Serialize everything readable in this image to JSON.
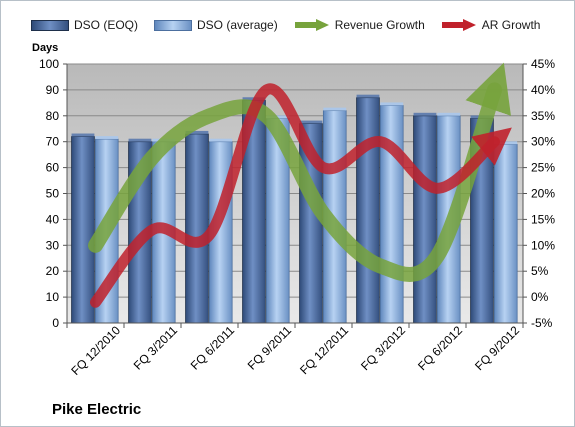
{
  "company_name": "Pike Electric",
  "chart_data": {
    "type": "bar",
    "title": "",
    "categories": [
      "FQ 12/2010",
      "FQ 3/2011",
      "FQ 6/2011",
      "FQ 9/2011",
      "FQ 12/2011",
      "FQ 3/2012",
      "FQ 6/2012",
      "FQ 9/2012"
    ],
    "ylabel": "Days",
    "ylim": [
      0,
      100
    ],
    "y_ticks": [
      0,
      10,
      20,
      30,
      40,
      50,
      60,
      70,
      80,
      90,
      100
    ],
    "y2lim": [
      -5,
      45
    ],
    "y2_ticks": [
      "-5%",
      "0%",
      "5%",
      "10%",
      "15%",
      "20%",
      "25%",
      "30%",
      "35%",
      "40%",
      "45%"
    ],
    "y2_values": [
      -5,
      0,
      5,
      10,
      15,
      20,
      25,
      30,
      35,
      40,
      45
    ],
    "grid": true,
    "legend_position": "top",
    "series": [
      {
        "name": "DSO (EOQ)",
        "type": "bar",
        "axis": "left",
        "color": "#4f6fa3",
        "values": [
          72,
          70,
          73,
          86,
          77,
          87,
          80,
          79
        ]
      },
      {
        "name": "DSO (average)",
        "type": "bar",
        "axis": "left",
        "color": "#8db3e2",
        "values": [
          71,
          70,
          70,
          79,
          82,
          84,
          80,
          69
        ]
      },
      {
        "name": "Revenue Growth",
        "type": "line",
        "axis": "right",
        "color": "#77a33c",
        "values": [
          10,
          27,
          35,
          35,
          16,
          6,
          8,
          40
        ]
      },
      {
        "name": "AR Growth",
        "type": "line",
        "axis": "right",
        "color": "#c0212b",
        "values": [
          -1,
          13,
          12,
          40,
          25,
          30,
          21,
          30
        ]
      }
    ]
  }
}
